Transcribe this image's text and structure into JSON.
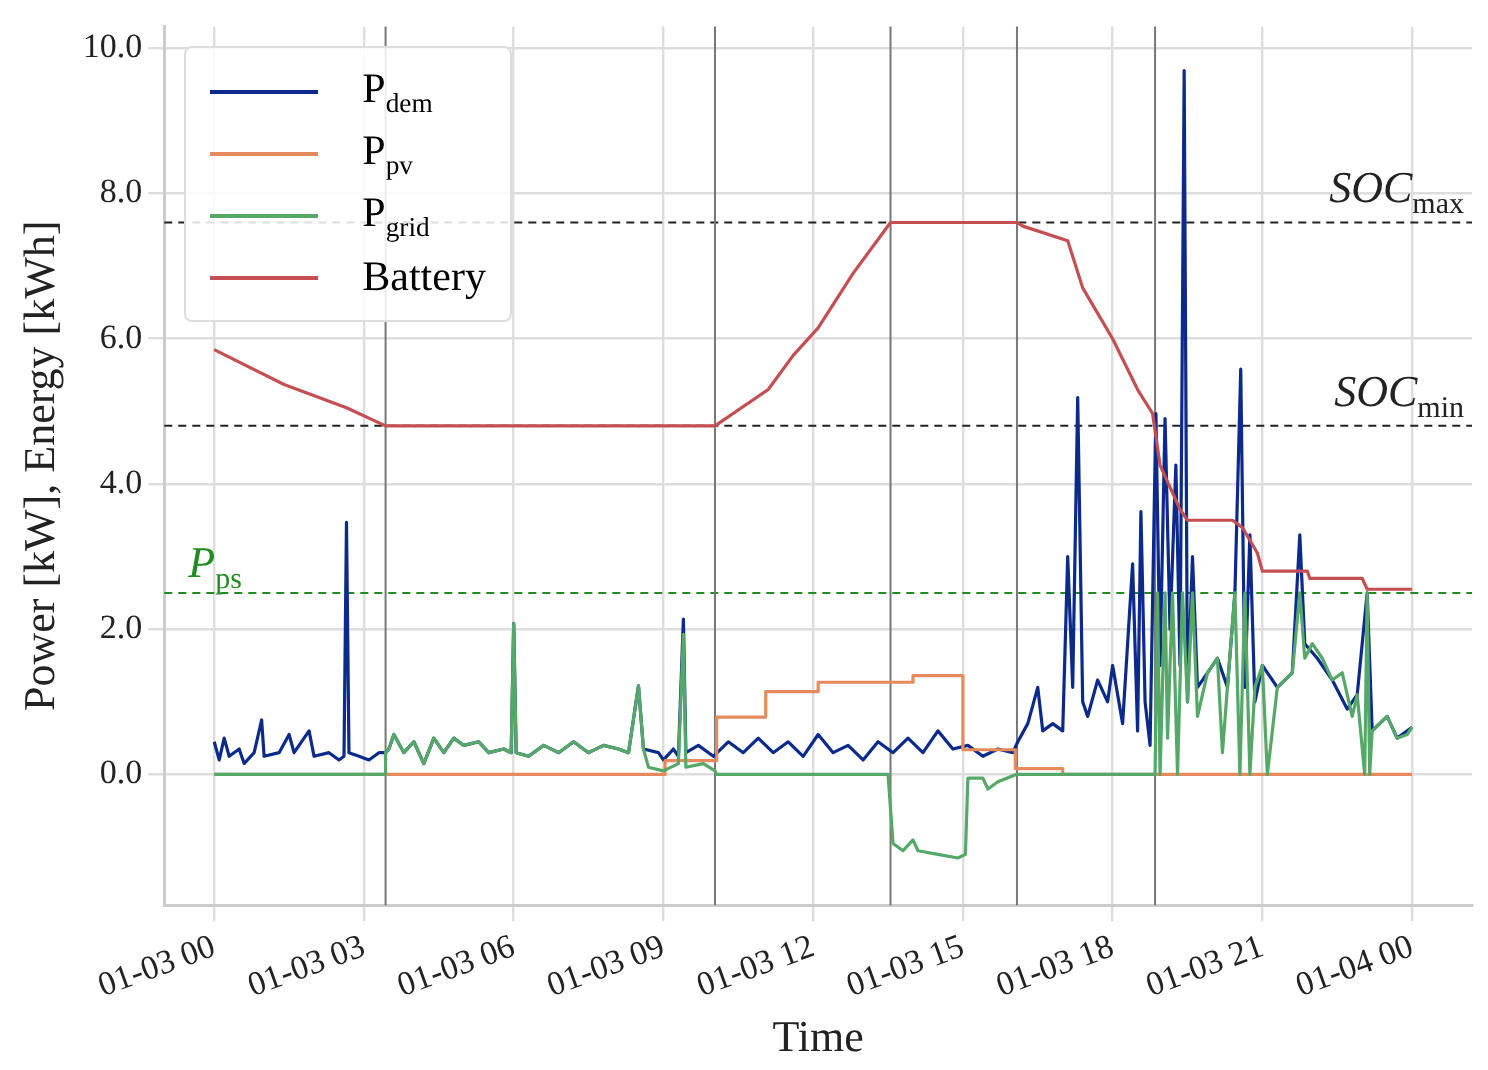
{
  "chart_data": {
    "type": "line",
    "xlabel": "Time",
    "ylabel": "Power [kW], Energy [kWh]",
    "xlim": [
      "--01-02T23:00",
      "--01-04T01:12"
    ],
    "ylim": [
      -1.8,
      10.3
    ],
    "xticks": [
      {
        "value": "--01-03T00:00",
        "label": "01-03 00"
      },
      {
        "value": "--01-03T03:00",
        "label": "01-03 03"
      },
      {
        "value": "--01-03T06:00",
        "label": "01-03 06"
      },
      {
        "value": "--01-03T09:00",
        "label": "01-03 09"
      },
      {
        "value": "--01-03T12:00",
        "label": "01-03 12"
      },
      {
        "value": "--01-03T15:00",
        "label": "01-03 15"
      },
      {
        "value": "--01-03T18:00",
        "label": "01-03 18"
      },
      {
        "value": "--01-03T21:00",
        "label": "01-03 21"
      },
      {
        "value": "--01-04T00:00",
        "label": "01-04 00"
      }
    ],
    "yticks": [
      {
        "value": 0,
        "label": "0.0"
      },
      {
        "value": 2,
        "label": "2.0"
      },
      {
        "value": 4,
        "label": "4.0"
      },
      {
        "value": 6,
        "label": "6.0"
      },
      {
        "value": 8,
        "label": "8.0"
      },
      {
        "value": 10,
        "label": "10.0"
      }
    ],
    "grid": true,
    "legend": "top left",
    "marker": "none",
    "line_style": "solid",
    "series": [
      {
        "name": "P$_{dem}$",
        "color": "#0c2a8c",
        "x": [
          "--01-03T00:00",
          "--01-03T00:06",
          "--01-03T00:12",
          "--01-03T00:18",
          "--01-03T00:30",
          "--01-03T00:36",
          "--01-03T00:48",
          "--01-03T00:57",
          "--01-03T01:00",
          "--01-03T01:18",
          "--01-03T01:30",
          "--01-03T01:36",
          "--01-03T01:54",
          "--01-03T02:00",
          "--01-03T02:18",
          "--01-03T02:30",
          "--01-03T02:36",
          "--01-03T02:39",
          "--01-03T02:42",
          "--01-03T02:54",
          "--01-03T03:06",
          "--01-03T03:18",
          "--01-03T03:26",
          "--01-03T03:30",
          "--01-03T03:36",
          "--01-03T03:48",
          "--01-03T04:00",
          "--01-03T04:12",
          "--01-03T04:24",
          "--01-03T04:36",
          "--01-03T04:48",
          "--01-03T05:00",
          "--01-03T05:18",
          "--01-03T05:30",
          "--01-03T05:48",
          "--01-03T05:57",
          "--01-03T06:00",
          "--01-03T06:03",
          "--01-03T06:18",
          "--01-03T06:36",
          "--01-03T06:54",
          "--01-03T07:12",
          "--01-03T07:30",
          "--01-03T07:48",
          "--01-03T08:06",
          "--01-03T08:18",
          "--01-03T08:30",
          "--01-03T08:36",
          "--01-03T08:54",
          "--01-03T09:00",
          "--01-03T09:12",
          "--01-03T09:18",
          "--01-03T09:24",
          "--01-03T09:27",
          "--01-03T09:42",
          "--01-03T10:00",
          "--01-03T10:18",
          "--01-03T10:36",
          "--01-03T10:54",
          "--01-03T11:12",
          "--01-03T11:30",
          "--01-03T11:48",
          "--01-03T12:06",
          "--01-03T12:24",
          "--01-03T12:42",
          "--01-03T13:00",
          "--01-03T13:18",
          "--01-03T13:36",
          "--01-03T13:54",
          "--01-03T14:12",
          "--01-03T14:30",
          "--01-03T14:48",
          "--01-03T15:06",
          "--01-03T15:24",
          "--01-03T15:42",
          "--01-03T16:00",
          "--01-03T16:06",
          "--01-03T16:18",
          "--01-03T16:30",
          "--01-03T16:36",
          "--01-03T16:48",
          "--01-03T17:00",
          "--01-03T17:06",
          "--01-03T17:12",
          "--01-03T17:18",
          "--01-03T17:24",
          "--01-03T17:30",
          "--01-03T17:42",
          "--01-03T17:54",
          "--01-03T18:00",
          "--01-03T18:12",
          "--01-03T18:24",
          "--01-03T18:30",
          "--01-03T18:34",
          "--01-03T18:39",
          "--01-03T18:45",
          "--01-03T18:52",
          "--01-03T18:57",
          "--01-03T19:03",
          "--01-03T19:09",
          "--01-03T19:16",
          "--01-03T19:21",
          "--01-03T19:26",
          "--01-03T19:30",
          "--01-03T19:36",
          "--01-03T19:42",
          "--01-03T19:54",
          "--01-03T20:06",
          "--01-03T20:18",
          "--01-03T20:27",
          "--01-03T20:34",
          "--01-03T20:39",
          "--01-03T20:45",
          "--01-03T20:51",
          "--01-03T21:00",
          "--01-03T21:18",
          "--01-03T21:36",
          "--01-03T21:45",
          "--01-03T21:51",
          "--01-03T22:06",
          "--01-03T22:24",
          "--01-03T22:42",
          "--01-03T22:54",
          "--01-03T23:06",
          "--01-03T23:12",
          "--01-03T23:30",
          "--01-03T23:42",
          "--01-04T00:00"
        ],
        "values": [
          0.45,
          0.2,
          0.5,
          0.25,
          0.35,
          0.15,
          0.3,
          0.75,
          0.25,
          0.3,
          0.55,
          0.3,
          0.6,
          0.25,
          0.3,
          0.2,
          0.25,
          3.47,
          0.3,
          0.25,
          0.2,
          0.3,
          0.3,
          0.35,
          0.55,
          0.3,
          0.45,
          0.15,
          0.5,
          0.3,
          0.5,
          0.4,
          0.45,
          0.3,
          0.35,
          0.3,
          2.08,
          0.3,
          0.25,
          0.4,
          0.3,
          0.45,
          0.3,
          0.4,
          0.35,
          0.3,
          1.22,
          0.35,
          0.3,
          0.2,
          0.35,
          0.25,
          2.14,
          0.3,
          0.4,
          0.25,
          0.45,
          0.3,
          0.5,
          0.3,
          0.45,
          0.25,
          0.55,
          0.3,
          0.4,
          0.2,
          0.45,
          0.3,
          0.5,
          0.3,
          0.6,
          0.35,
          0.4,
          0.25,
          0.35,
          0.3,
          0.45,
          0.7,
          1.2,
          0.6,
          0.7,
          0.6,
          3.0,
          1.2,
          5.19,
          1.0,
          0.8,
          1.3,
          1.0,
          1.5,
          0.7,
          2.9,
          0.6,
          3.62,
          1.0,
          0.4,
          4.97,
          1.5,
          4.9,
          2.0,
          4.26,
          1.5,
          9.69,
          1.0,
          3.0,
          1.2,
          1.4,
          1.6,
          1.2,
          2.5,
          5.58,
          1.2,
          3.3,
          1.0,
          1.5,
          1.2,
          1.4,
          3.3,
          1.8,
          1.6,
          1.3,
          0.9,
          1.1,
          2.5,
          0.6,
          0.8,
          0.5,
          0.65
        ]
      },
      {
        "name": "P$_{pv}$",
        "color": "#e58a5c",
        "x": [
          "--01-03T00:00",
          "--01-03T09:02",
          "--01-03T09:02",
          "--01-03T10:04",
          "--01-03T10:04",
          "--01-03T11:03",
          "--01-03T11:03",
          "--01-03T12:06",
          "--01-03T12:06",
          "--01-03T14:00",
          "--01-03T14:00",
          "--01-03T15:00",
          "--01-03T15:00",
          "--01-03T16:03",
          "--01-03T16:03",
          "--01-03T17:00",
          "--01-03T17:00",
          "--01-04T00:00"
        ],
        "values": [
          0,
          0,
          0.19,
          0.19,
          0.79,
          0.79,
          1.14,
          1.14,
          1.27,
          1.27,
          1.36,
          1.36,
          0.34,
          0.34,
          0.08,
          0.08,
          0,
          0
        ]
      },
      {
        "name": "P$_{grid}$",
        "color": "#55a868",
        "x": [
          "--01-03T00:00",
          "--01-03T03:26",
          "--01-03T03:26",
          "--01-03T03:30",
          "--01-03T03:36",
          "--01-03T03:48",
          "--01-03T04:00",
          "--01-03T04:12",
          "--01-03T04:24",
          "--01-03T04:36",
          "--01-03T04:48",
          "--01-03T05:00",
          "--01-03T05:18",
          "--01-03T05:30",
          "--01-03T05:48",
          "--01-03T05:57",
          "--01-03T06:00",
          "--01-03T06:03",
          "--01-03T06:18",
          "--01-03T06:36",
          "--01-03T06:54",
          "--01-03T07:12",
          "--01-03T07:30",
          "--01-03T07:48",
          "--01-03T08:06",
          "--01-03T08:18",
          "--01-03T08:30",
          "--01-03T08:36",
          "--01-03T08:42",
          "--01-03T09:00",
          "--01-03T09:18",
          "--01-03T09:24",
          "--01-03T09:27",
          "--01-03T09:48",
          "--01-03T10:02",
          "--01-03T10:04",
          "--01-03T13:30",
          "--01-03T13:36",
          "--01-03T13:48",
          "--01-03T14:00",
          "--01-03T14:06",
          "--01-03T14:30",
          "--01-03T14:54",
          "--01-03T15:03",
          "--01-03T15:06",
          "--01-03T15:24",
          "--01-03T15:30",
          "--01-03T15:42",
          "--01-03T16:04",
          "--01-03T18:51",
          "--01-03T18:54",
          "--01-03T18:57",
          "--01-03T19:03",
          "--01-03T19:06",
          "--01-03T19:12",
          "--01-03T19:18",
          "--01-03T19:24",
          "--01-03T19:30",
          "--01-03T19:36",
          "--01-03T19:42",
          "--01-03T19:54",
          "--01-03T20:06",
          "--01-03T20:12",
          "--01-03T20:18",
          "--01-03T20:27",
          "--01-03T20:33",
          "--01-03T20:39",
          "--01-03T20:45",
          "--01-03T20:51",
          "--01-03T21:00",
          "--01-03T21:06",
          "--01-03T21:18",
          "--01-03T21:36",
          "--01-03T21:45",
          "--01-03T21:51",
          "--01-03T22:00",
          "--01-03T22:12",
          "--01-03T22:24",
          "--01-03T22:36",
          "--01-03T22:48",
          "--01-03T22:54",
          "--01-03T23:03",
          "--01-03T23:06",
          "--01-03T23:09",
          "--01-03T23:12",
          "--01-03T23:30",
          "--01-03T23:42",
          "--01-03T23:54",
          "--01-04T00:00"
        ],
        "values": [
          0,
          0,
          0.3,
          0.35,
          0.55,
          0.3,
          0.45,
          0.15,
          0.5,
          0.3,
          0.5,
          0.4,
          0.45,
          0.3,
          0.35,
          0.3,
          2.08,
          0.3,
          0.25,
          0.4,
          0.3,
          0.45,
          0.3,
          0.4,
          0.35,
          0.3,
          1.22,
          0.35,
          0.1,
          0.05,
          0.15,
          1.93,
          0.1,
          0.15,
          0.05,
          0,
          0,
          -0.95,
          -1.05,
          -0.9,
          -1.05,
          -1.1,
          -1.15,
          -1.1,
          -0.05,
          -0.05,
          -0.2,
          -0.1,
          0,
          0,
          2.5,
          0,
          2.5,
          0.5,
          2.5,
          0,
          2.5,
          1.0,
          2.5,
          0.8,
          1.4,
          1.6,
          0.3,
          1.2,
          2.5,
          0,
          2.5,
          0,
          1.2,
          1.5,
          0,
          1.2,
          1.4,
          2.5,
          1.6,
          1.8,
          1.6,
          1.3,
          1.4,
          0.8,
          1.1,
          0,
          2.5,
          0,
          0.6,
          0.8,
          0.5,
          0.55,
          0.65
        ]
      },
      {
        "name": "Battery",
        "color": "#c44e52",
        "x": [
          "--01-03T00:00",
          "--01-03T01:24",
          "--01-03T02:39",
          "--01-03T03:26",
          "--01-03T10:02",
          "--01-03T11:06",
          "--01-03T11:36",
          "--01-03T12:06",
          "--01-03T12:48",
          "--01-03T13:33",
          "--01-03T16:05",
          "--01-03T16:12",
          "--01-03T17:06",
          "--01-03T17:24",
          "--01-03T18:00",
          "--01-03T18:30",
          "--01-03T18:48",
          "--01-03T18:57",
          "--01-03T19:21",
          "--01-03T19:30",
          "--01-03T20:24",
          "--01-03T20:36",
          "--01-03T20:54",
          "--01-03T21:00",
          "--01-03T21:54",
          "--01-03T21:57",
          "--01-03T23:00",
          "--01-03T23:06",
          "--01-04T00:00"
        ],
        "values": [
          5.85,
          5.37,
          5.05,
          4.8,
          4.8,
          5.3,
          5.77,
          6.15,
          6.9,
          7.6,
          7.6,
          7.55,
          7.35,
          6.7,
          6.0,
          5.3,
          4.97,
          4.26,
          3.65,
          3.5,
          3.5,
          3.4,
          3.05,
          2.8,
          2.8,
          2.7,
          2.7,
          2.55,
          2.55
        ]
      }
    ],
    "ref_lines": [
      {
        "axis": "y",
        "value": 7.6,
        "label": "SOC$_{max}$",
        "color": "#222222",
        "line_style": "dashed"
      },
      {
        "axis": "y",
        "value": 4.8,
        "label": "SOC$_{min}$",
        "color": "#222222",
        "line_style": "dashed"
      },
      {
        "axis": "y",
        "value": 2.5,
        "label": "P$_{ps}$",
        "color": "#228b22",
        "line_style": "dashed"
      },
      {
        "axis": "x",
        "value": "--01-03T03:26",
        "color": "#777777",
        "line_style": "solid"
      },
      {
        "axis": "x",
        "value": "--01-03T10:02",
        "color": "#777777",
        "line_style": "solid"
      },
      {
        "axis": "x",
        "value": "--01-03T13:33",
        "color": "#777777",
        "line_style": "solid"
      },
      {
        "axis": "x",
        "value": "--01-03T16:05",
        "color": "#777777",
        "line_style": "solid"
      },
      {
        "axis": "x",
        "value": "--01-03T18:51",
        "color": "#777777",
        "line_style": "solid"
      }
    ]
  }
}
